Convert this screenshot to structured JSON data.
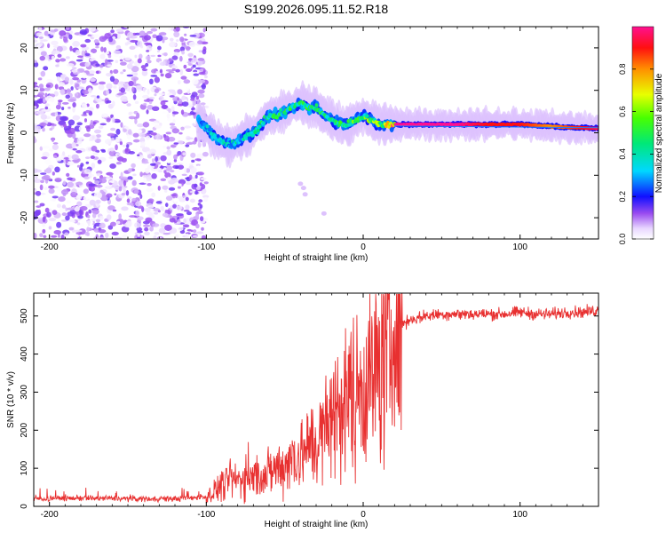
{
  "title": "S199.2026.095.11.52.R18",
  "chart_data": [
    {
      "type": "heatmap",
      "xlabel": "Height of straight line (km)",
      "ylabel": "Frequency (Hz)",
      "xlim": [
        -210,
        150
      ],
      "ylim": [
        -25,
        25
      ],
      "xticks": [
        -200,
        -100,
        0,
        100
      ],
      "yticks": [
        -20,
        -10,
        0,
        10,
        20
      ],
      "colorbar": {
        "label": "Normalized spectral amplitude",
        "range": [
          0,
          1
        ],
        "ticks": [
          0.0,
          0.2,
          0.4,
          0.6,
          0.8
        ]
      },
      "ridge": {
        "x": [
          -105,
          -100,
          -95,
          -90,
          -85,
          -80,
          -75,
          -70,
          -65,
          -60,
          -55,
          -50,
          -45,
          -40,
          -35,
          -30,
          -25,
          -20,
          -15,
          -10,
          -5,
          0,
          5,
          10,
          15,
          20,
          40,
          60,
          80,
          100,
          120,
          150
        ],
        "frequency": [
          3,
          1,
          -1,
          -2,
          -3,
          -2,
          -1,
          0,
          2,
          4,
          4,
          5,
          6,
          7,
          6,
          6,
          4,
          3,
          2,
          2,
          3,
          4,
          3,
          2,
          2,
          2,
          2,
          2,
          2,
          2,
          1.5,
          1
        ],
        "amplitude": [
          0.3,
          0.35,
          0.35,
          0.35,
          0.4,
          0.4,
          0.4,
          0.4,
          0.45,
          0.45,
          0.45,
          0.45,
          0.5,
          0.45,
          0.5,
          0.45,
          0.5,
          0.55,
          0.5,
          0.5,
          0.55,
          0.5,
          0.6,
          0.6,
          0.65,
          1.0,
          1.0,
          1.0,
          0.9,
          0.9,
          0.8,
          0.95
        ]
      },
      "noise_region": {
        "x_range": [
          -210,
          -100
        ],
        "amplitude_max": 0.15
      }
    },
    {
      "type": "line",
      "xlabel": "Height of straight line (km)",
      "ylabel": "SNR (10 * v/v)",
      "xlim": [
        -210,
        150
      ],
      "ylim": [
        0,
        560
      ],
      "xticks": [
        -200,
        -100,
        0,
        100
      ],
      "yticks": [
        0,
        100,
        200,
        300,
        400,
        500
      ],
      "series": [
        {
          "name": "SNR",
          "color": "#e83030",
          "x": [
            -210,
            -180,
            -150,
            -120,
            -100,
            -95,
            -90,
            -85,
            -80,
            -75,
            -70,
            -65,
            -60,
            -55,
            -50,
            -45,
            -40,
            -35,
            -30,
            -25,
            -20,
            -15,
            -10,
            -5,
            0,
            5,
            10,
            15,
            20,
            25,
            30,
            40,
            50,
            60,
            70,
            80,
            90,
            100,
            110,
            120,
            130,
            140,
            150
          ],
          "y": [
            20,
            22,
            20,
            20,
            25,
            40,
            60,
            70,
            70,
            70,
            75,
            80,
            90,
            100,
            110,
            130,
            140,
            150,
            170,
            190,
            240,
            260,
            280,
            300,
            330,
            340,
            370,
            420,
            460,
            480,
            490,
            500,
            505,
            505,
            505,
            505,
            505,
            510,
            505,
            505,
            510,
            510,
            515
          ]
        }
      ]
    }
  ]
}
